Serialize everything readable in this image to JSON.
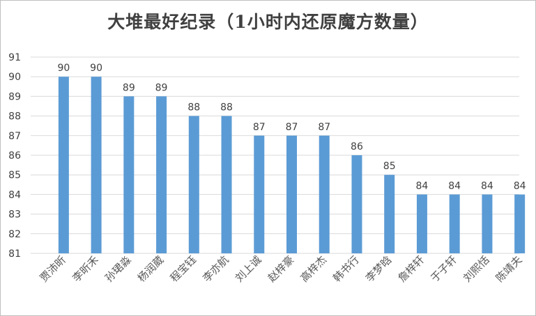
{
  "chart_data": {
    "type": "bar",
    "title": "大堆最好纪录（1小时内还原魔方数量）",
    "xlabel": "",
    "ylabel": "",
    "categories": [
      "贾沛昕",
      "李昕禾",
      "孙珺淼",
      "杨润葳",
      "程宝钰",
      "李亦航",
      "刘上诚",
      "赵梓豪",
      "高梓杰",
      "韩书行",
      "李梦晗",
      "詹梓轩",
      "于子轩",
      "刘熙恬",
      "陈靖夫"
    ],
    "values": [
      90,
      90,
      89,
      89,
      88,
      88,
      87,
      87,
      87,
      86,
      85,
      84,
      84,
      84,
      84
    ],
    "ylim": [
      81,
      91
    ],
    "yticks": [
      81,
      82,
      83,
      84,
      85,
      86,
      87,
      88,
      89,
      90,
      91
    ],
    "grid": true,
    "bar_color": "#5b9bd5"
  }
}
